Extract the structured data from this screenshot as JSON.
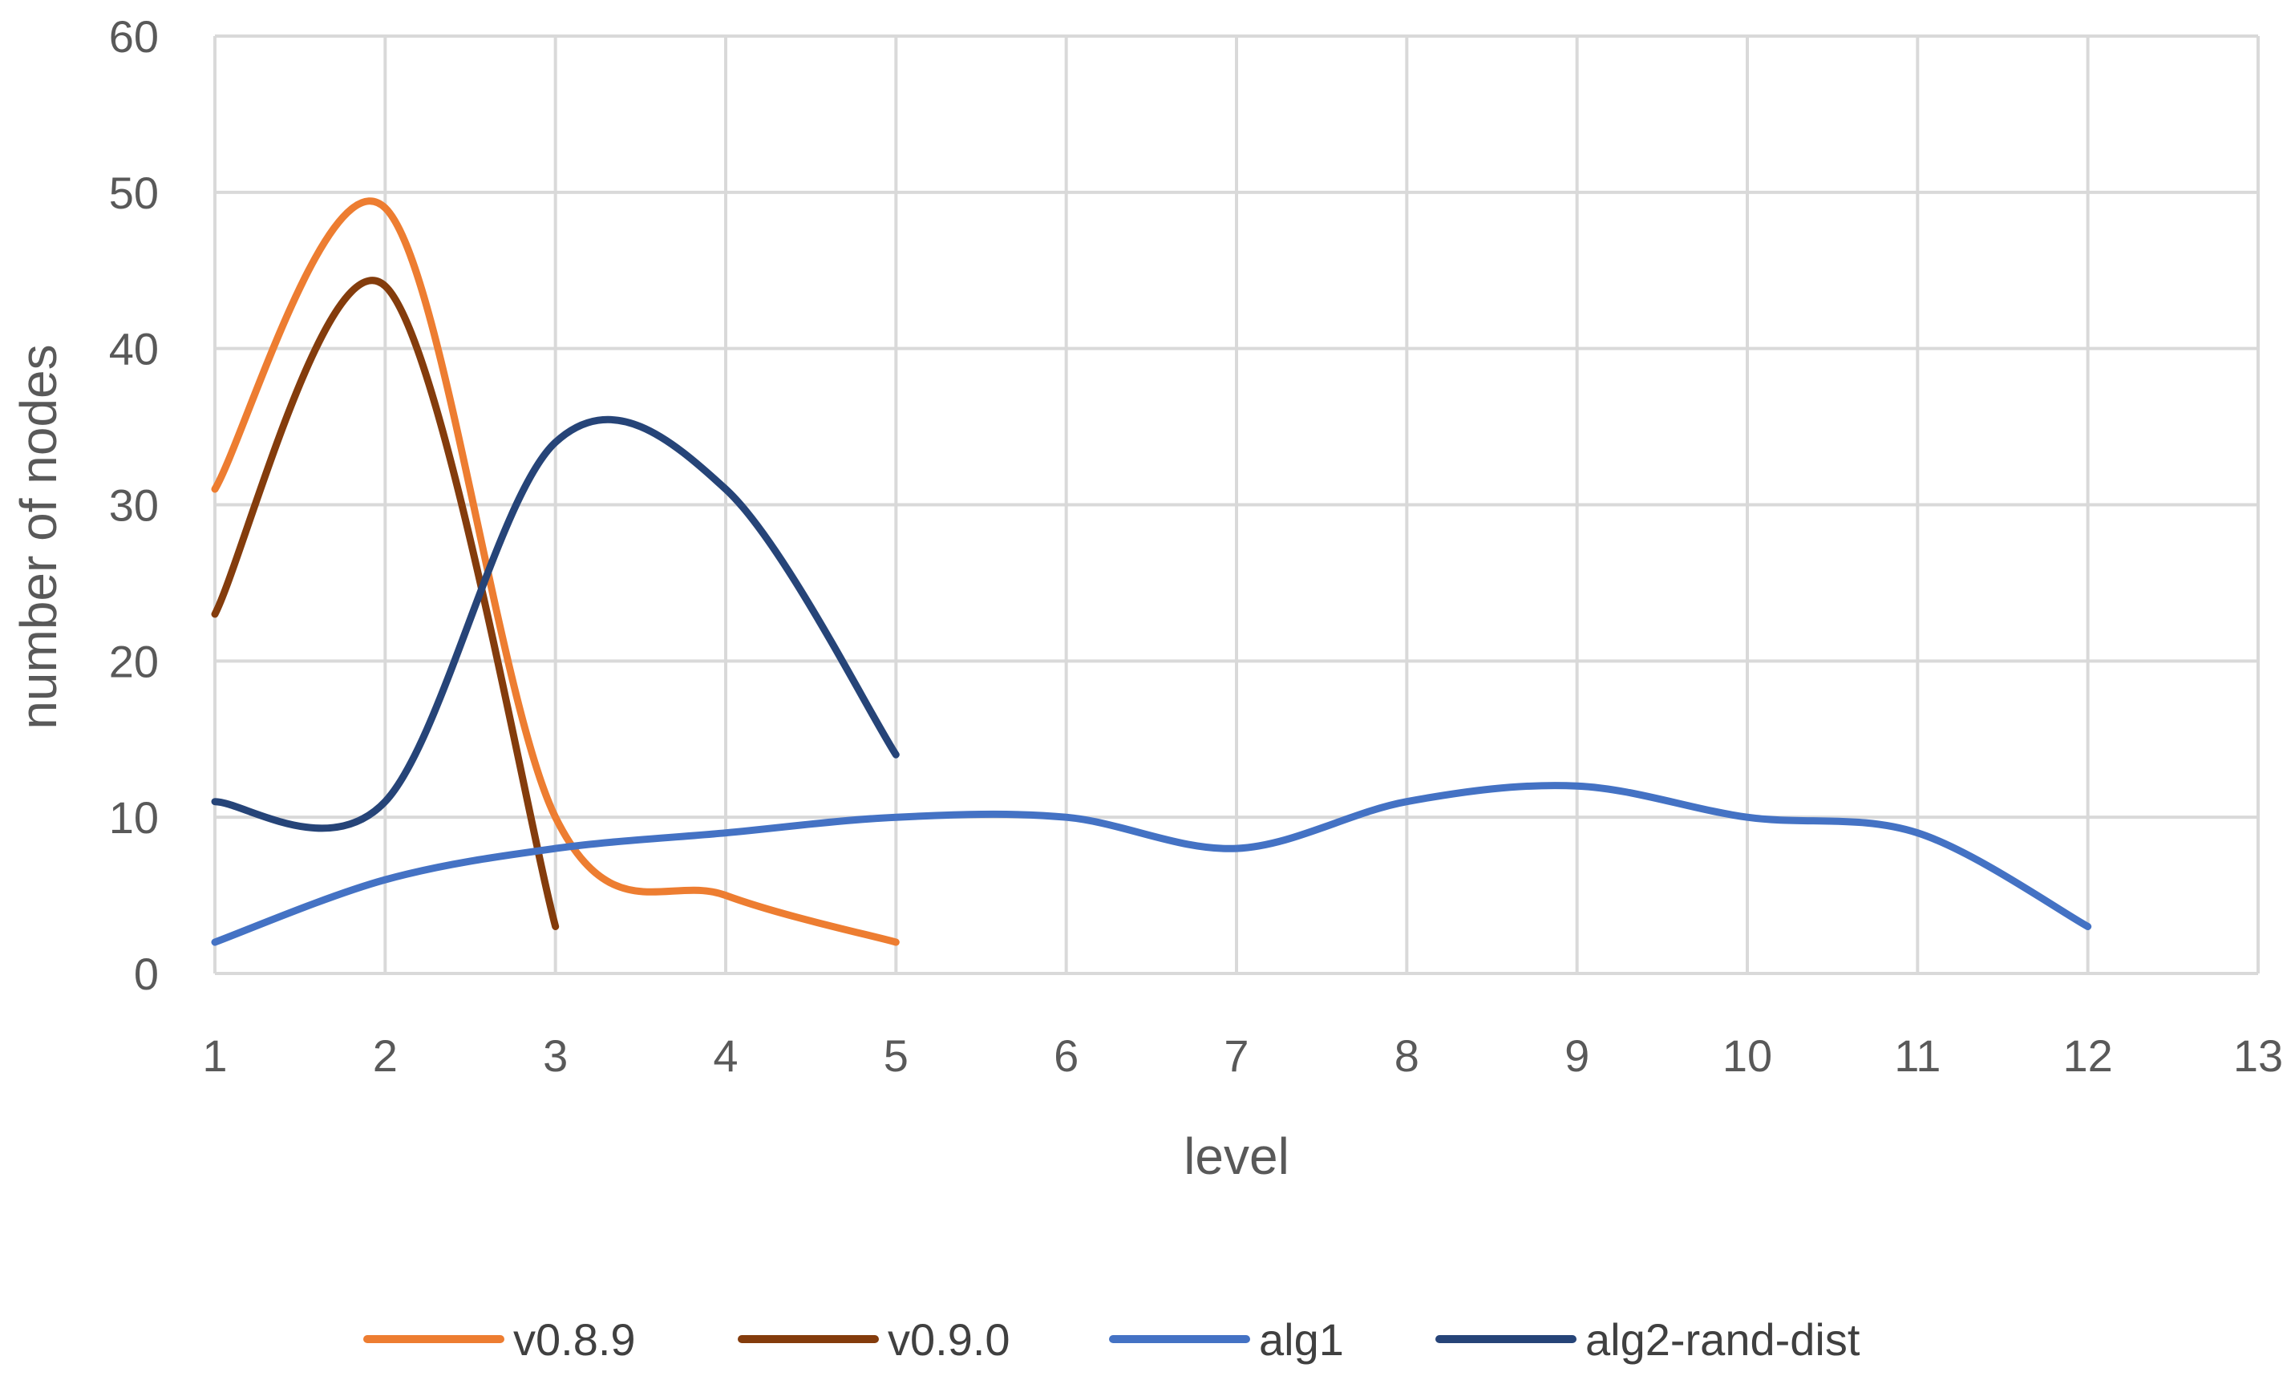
{
  "chart_data": {
    "type": "line",
    "smooth": true,
    "xlabel": "level",
    "ylabel": "number of nodes",
    "xlim": [
      1,
      13
    ],
    "ylim": [
      0,
      60
    ],
    "xticks": [
      1,
      2,
      3,
      4,
      5,
      6,
      7,
      8,
      9,
      10,
      11,
      12,
      13
    ],
    "yticks": [
      0,
      10,
      20,
      30,
      40,
      50,
      60
    ],
    "grid": true,
    "legend_position": "bottom",
    "series": [
      {
        "name": "v0.8.9",
        "color": "#ED7D31",
        "x": [
          1,
          2,
          3,
          4,
          5
        ],
        "values": [
          31,
          49,
          10,
          5,
          2
        ]
      },
      {
        "name": "v0.9.0",
        "color": "#843C0C",
        "x": [
          1,
          2,
          3
        ],
        "values": [
          23,
          44,
          3
        ]
      },
      {
        "name": "alg1",
        "color": "#4472C4",
        "x": [
          1,
          2,
          3,
          4,
          5,
          6,
          7,
          8,
          9,
          10,
          11,
          12
        ],
        "values": [
          2,
          6,
          8,
          9,
          10,
          10,
          8,
          11,
          12,
          10,
          9,
          3
        ]
      },
      {
        "name": "alg2-rand-dist",
        "color": "#264478",
        "x": [
          1,
          2,
          3,
          4,
          5
        ],
        "values": [
          11,
          11,
          34,
          31,
          14
        ]
      }
    ]
  }
}
